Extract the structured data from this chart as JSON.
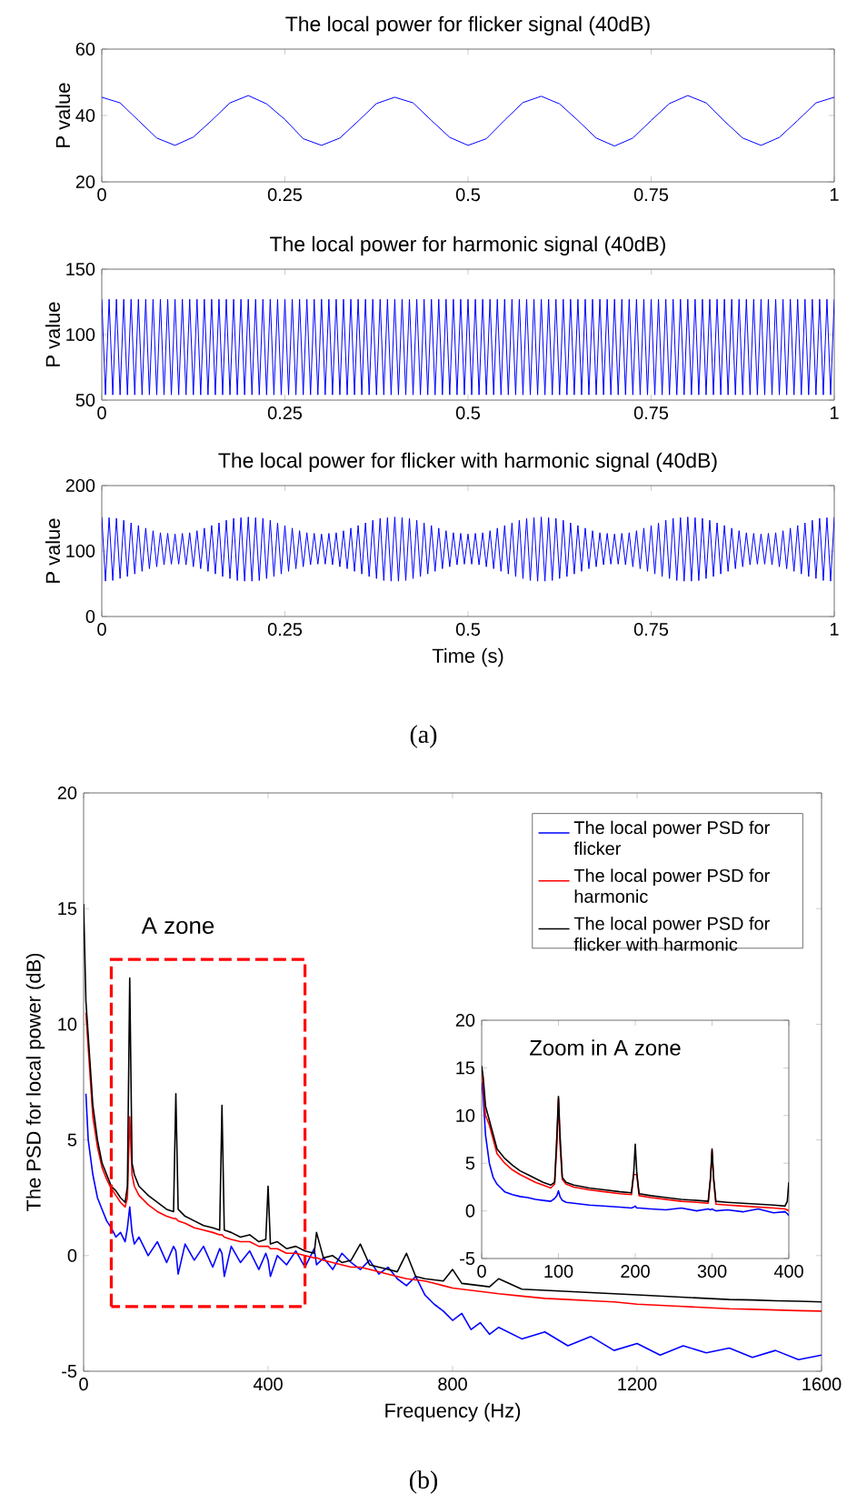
{
  "chart_data": [
    {
      "type": "line",
      "title": "The local power for flicker signal (40dB)",
      "ylabel": "P value",
      "xlim": [
        0,
        1
      ],
      "ylim": [
        20,
        60
      ],
      "xticks": [
        0,
        0.25,
        0.5,
        0.75,
        1
      ],
      "yticks": [
        20,
        40,
        60
      ],
      "x": [
        0,
        0.025,
        0.05,
        0.075,
        0.1,
        0.125,
        0.15,
        0.175,
        0.2,
        0.225,
        0.25,
        0.275,
        0.3,
        0.325,
        0.35,
        0.375,
        0.4,
        0.425,
        0.45,
        0.475,
        0.5,
        0.525,
        0.55,
        0.575,
        0.6,
        0.625,
        0.65,
        0.675,
        0.7,
        0.725,
        0.75,
        0.775,
        0.8,
        0.825,
        0.85,
        0.875,
        0.9,
        0.925,
        0.95,
        0.975,
        1
      ],
      "series": [
        {
          "color": "#0000ff",
          "values": [
            45.5,
            43.8,
            38.5,
            33.2,
            31,
            33.5,
            38.5,
            43.8,
            46,
            43.5,
            38.8,
            33,
            31,
            33.2,
            38.3,
            43.6,
            45.5,
            43.8,
            38.5,
            33.4,
            31,
            33,
            38.6,
            43.9,
            45.8,
            43.5,
            38.5,
            33.2,
            30.8,
            33.2,
            38.5,
            43.6,
            46,
            43.8,
            38.3,
            33.2,
            31,
            33.4,
            38.5,
            43.8,
            45.5
          ]
        }
      ]
    },
    {
      "type": "line",
      "title": "The local power for harmonic signal (40dB)",
      "ylabel": "P value",
      "xlim": [
        0,
        1
      ],
      "ylim": [
        50,
        150
      ],
      "xticks": [
        0,
        0.25,
        0.5,
        0.75,
        1
      ],
      "yticks": [
        50,
        100,
        150
      ],
      "x": [
        0,
        0.005,
        0.01,
        0.015,
        0.02,
        0.025,
        0.03,
        0.035,
        0.04,
        0.045,
        0.05,
        0.055,
        0.06,
        0.065,
        0.07,
        0.075,
        0.08,
        0.085,
        0.09,
        0.095,
        0.1,
        0.105,
        0.11,
        0.115,
        0.12,
        0.125,
        0.13,
        0.135,
        0.14,
        0.145,
        0.15,
        0.155,
        0.16,
        0.165,
        0.17,
        0.175,
        0.18,
        0.185,
        0.19,
        0.195,
        0.2,
        0.205,
        0.21,
        0.215,
        0.22,
        0.225,
        0.23,
        0.235,
        0.24,
        0.245,
        0.25,
        0.255,
        0.26,
        0.265,
        0.27,
        0.275,
        0.28,
        0.285,
        0.29,
        0.295,
        0.3,
        0.305,
        0.31,
        0.315,
        0.32,
        0.325,
        0.33,
        0.335,
        0.34,
        0.345,
        0.35,
        0.355,
        0.36,
        0.365,
        0.37,
        0.375,
        0.38,
        0.385,
        0.39,
        0.395,
        0.4,
        0.405,
        0.41,
        0.415,
        0.42,
        0.425,
        0.43,
        0.435,
        0.44,
        0.445,
        0.45,
        0.455,
        0.46,
        0.465,
        0.47,
        0.475,
        0.48,
        0.485,
        0.49,
        0.495,
        0.5,
        0.505,
        0.51,
        0.515,
        0.52,
        0.525,
        0.53,
        0.535,
        0.54,
        0.545,
        0.55,
        0.555,
        0.56,
        0.565,
        0.57,
        0.575,
        0.58,
        0.585,
        0.59,
        0.595,
        0.6,
        0.605,
        0.61,
        0.615,
        0.62,
        0.625,
        0.63,
        0.635,
        0.64,
        0.645,
        0.65,
        0.655,
        0.66,
        0.665,
        0.67,
        0.675,
        0.68,
        0.685,
        0.69,
        0.695,
        0.7,
        0.705,
        0.71,
        0.715,
        0.72,
        0.725,
        0.73,
        0.735,
        0.74,
        0.745,
        0.75,
        0.755,
        0.76,
        0.765,
        0.77,
        0.775,
        0.78,
        0.785,
        0.79,
        0.795,
        0.8,
        0.805,
        0.81,
        0.815,
        0.82,
        0.825,
        0.83,
        0.835,
        0.84,
        0.845,
        0.85,
        0.855,
        0.86,
        0.865,
        0.87,
        0.875,
        0.88,
        0.885,
        0.89,
        0.895,
        0.9,
        0.905,
        0.91,
        0.915,
        0.92,
        0.925,
        0.93,
        0.935,
        0.94,
        0.945,
        0.95,
        0.955,
        0.96,
        0.965,
        0.97,
        0.975,
        0.98,
        0.985,
        0.99,
        0.995,
        1
      ],
      "series": [
        {
          "color": "#0000ff",
          "values": [
            127,
            54,
            127,
            54,
            127,
            54,
            127,
            54,
            127,
            54,
            127,
            54,
            127,
            54,
            127,
            54,
            127,
            54,
            127,
            54,
            127,
            54,
            127,
            54,
            127,
            54,
            127,
            54,
            127,
            54,
            127,
            54,
            127,
            54,
            127,
            54,
            127,
            54,
            127,
            54,
            127,
            54,
            127,
            54,
            127,
            54,
            127,
            54,
            127,
            54,
            127,
            54,
            127,
            54,
            127,
            54,
            127,
            54,
            127,
            54,
            127,
            54,
            127,
            54,
            127,
            54,
            127,
            54,
            127,
            54,
            127,
            54,
            127,
            54,
            127,
            54,
            127,
            54,
            127,
            54,
            127,
            54,
            127,
            54,
            127,
            54,
            127,
            54,
            127,
            54,
            127,
            54,
            127,
            54,
            127,
            54,
            127,
            54,
            127,
            54,
            127,
            54,
            127,
            54,
            127,
            54,
            127,
            54,
            127,
            54,
            127,
            54,
            127,
            54,
            127,
            54,
            127,
            54,
            127,
            54,
            127,
            54,
            127,
            54,
            127,
            54,
            127,
            54,
            127,
            54,
            127,
            54,
            127,
            54,
            127,
            54,
            127,
            54,
            127,
            54,
            127,
            54,
            127,
            54,
            127,
            54,
            127,
            54,
            127,
            54,
            127,
            54,
            127,
            54,
            127,
            54,
            127,
            54,
            127,
            54,
            127,
            54,
            127,
            54,
            127,
            54,
            127,
            54,
            127,
            54,
            127,
            54,
            127,
            54,
            127,
            54,
            127,
            54,
            127,
            54,
            127,
            54,
            127,
            54,
            127,
            54,
            127,
            54,
            127,
            54,
            127,
            54,
            127,
            54,
            127,
            54,
            127,
            54,
            127,
            54,
            127
          ]
        }
      ]
    },
    {
      "type": "line",
      "title": "The local power for flicker with harmonic signal (40dB)",
      "xlabel": "Time (s)",
      "ylabel": "P value",
      "annotations": [
        "(a)"
      ],
      "xlim": [
        0,
        1
      ],
      "ylim": [
        0,
        200
      ],
      "xticks": [
        0,
        0.25,
        0.5,
        0.75,
        1
      ],
      "yticks": [
        0,
        100,
        200
      ],
      "x": [
        0,
        0.005,
        0.01,
        0.015,
        0.02,
        0.025,
        0.03,
        0.035,
        0.04,
        0.045,
        0.05,
        0.055,
        0.06,
        0.065,
        0.07,
        0.075,
        0.08,
        0.085,
        0.09,
        0.095,
        0.1,
        0.105,
        0.11,
        0.115,
        0.12,
        0.125,
        0.13,
        0.135,
        0.14,
        0.145,
        0.15,
        0.155,
        0.16,
        0.165,
        0.17,
        0.175,
        0.18,
        0.185,
        0.19,
        0.195,
        0.2,
        0.205,
        0.21,
        0.215,
        0.22,
        0.225,
        0.23,
        0.235,
        0.24,
        0.245,
        0.25,
        0.255,
        0.26,
        0.265,
        0.27,
        0.275,
        0.28,
        0.285,
        0.29,
        0.295,
        0.3,
        0.305,
        0.31,
        0.315,
        0.32,
        0.325,
        0.33,
        0.335,
        0.34,
        0.345,
        0.35,
        0.355,
        0.36,
        0.365,
        0.37,
        0.375,
        0.38,
        0.385,
        0.39,
        0.395,
        0.4,
        0.405,
        0.41,
        0.415,
        0.42,
        0.425,
        0.43,
        0.435,
        0.44,
        0.445,
        0.45,
        0.455,
        0.46,
        0.465,
        0.47,
        0.475,
        0.48,
        0.485,
        0.49,
        0.495,
        0.5,
        0.505,
        0.51,
        0.515,
        0.52,
        0.525,
        0.53,
        0.535,
        0.54,
        0.545,
        0.55,
        0.555,
        0.56,
        0.565,
        0.57,
        0.575,
        0.58,
        0.585,
        0.59,
        0.595,
        0.6,
        0.605,
        0.61,
        0.615,
        0.62,
        0.625,
        0.63,
        0.635,
        0.64,
        0.645,
        0.65,
        0.655,
        0.66,
        0.665,
        0.67,
        0.675,
        0.68,
        0.685,
        0.69,
        0.695,
        0.7,
        0.705,
        0.71,
        0.715,
        0.72,
        0.725,
        0.73,
        0.735,
        0.74,
        0.745,
        0.75,
        0.755,
        0.76,
        0.765,
        0.77,
        0.775,
        0.78,
        0.785,
        0.79,
        0.795,
        0.8,
        0.805,
        0.81,
        0.815,
        0.82,
        0.825,
        0.83,
        0.835,
        0.84,
        0.845,
        0.85,
        0.855,
        0.86,
        0.865,
        0.87,
        0.875,
        0.88,
        0.885,
        0.89,
        0.895,
        0.9,
        0.905,
        0.91,
        0.915,
        0.92,
        0.925,
        0.93,
        0.935,
        0.94,
        0.945,
        0.95,
        0.955,
        0.96,
        0.965,
        0.97,
        0.975,
        0.98,
        0.985,
        0.99,
        0.995,
        1
      ],
      "series": [
        {
          "color": "#0000ff",
          "values": [
            152,
            54,
            151,
            55,
            150,
            58,
            147,
            61,
            143,
            65,
            139,
            69,
            135,
            73,
            131,
            76,
            128,
            79,
            127,
            80,
            126,
            80,
            127,
            79,
            128,
            76,
            131,
            73,
            135,
            69,
            139,
            65,
            143,
            61,
            147,
            58,
            150,
            55,
            151,
            54,
            152,
            54,
            151,
            55,
            150,
            58,
            147,
            61,
            143,
            65,
            139,
            69,
            135,
            73,
            131,
            76,
            128,
            79,
            127,
            80,
            126,
            80,
            127,
            79,
            128,
            76,
            131,
            73,
            135,
            69,
            139,
            65,
            143,
            61,
            147,
            58,
            150,
            55,
            151,
            54,
            152,
            54,
            151,
            55,
            150,
            58,
            147,
            61,
            143,
            65,
            139,
            69,
            135,
            73,
            131,
            76,
            128,
            79,
            127,
            80,
            126,
            80,
            127,
            79,
            128,
            76,
            131,
            73,
            135,
            69,
            139,
            65,
            143,
            61,
            147,
            58,
            150,
            55,
            151,
            54,
            152,
            54,
            151,
            55,
            150,
            58,
            147,
            61,
            143,
            65,
            139,
            69,
            135,
            73,
            131,
            76,
            128,
            79,
            127,
            80,
            126,
            80,
            127,
            79,
            128,
            76,
            131,
            73,
            135,
            69,
            139,
            65,
            143,
            61,
            147,
            58,
            150,
            55,
            151,
            54,
            152,
            54,
            151,
            55,
            150,
            58,
            147,
            61,
            143,
            65,
            139,
            69,
            135,
            73,
            131,
            76,
            128,
            79,
            127,
            80,
            126,
            80,
            127,
            79,
            128,
            76,
            131,
            73,
            135,
            69,
            139,
            65,
            143,
            61,
            147,
            58,
            150,
            55,
            151,
            54,
            152
          ]
        }
      ]
    },
    {
      "type": "line",
      "xlabel": "Frequency (Hz)",
      "ylabel": "The PSD for local power (dB)",
      "annotations": [
        "A zone",
        "(b)"
      ],
      "legend": "top right",
      "xlim": [
        0,
        1600
      ],
      "ylim": [
        -5,
        20
      ],
      "xticks": [
        0,
        400,
        800,
        1200,
        1600
      ],
      "yticks": [
        -5,
        0,
        5,
        10,
        15,
        20
      ],
      "x": [
        0,
        5,
        10,
        20,
        30,
        40,
        50,
        60,
        70,
        80,
        90,
        95,
        100,
        105,
        110,
        120,
        140,
        160,
        180,
        195,
        200,
        205,
        220,
        240,
        260,
        280,
        295,
        300,
        305,
        320,
        340,
        360,
        380,
        395,
        400,
        405,
        420,
        440,
        460,
        480,
        500,
        505,
        520,
        540,
        560,
        580,
        600,
        620,
        640,
        660,
        680,
        700,
        720,
        740,
        760,
        780,
        800,
        820,
        840,
        860,
        880,
        900,
        950,
        1000,
        1050,
        1100,
        1150,
        1200,
        1250,
        1300,
        1350,
        1400,
        1450,
        1500,
        1550,
        1600
      ],
      "series": [
        {
          "name": "The local power PSD for flicker",
          "color": "#0000ff",
          "values": [
            null,
            7,
            5,
            3.5,
            2.5,
            2,
            1.5,
            1.2,
            0.8,
            1,
            0.6,
            1.2,
            2.1,
            1,
            0.5,
            0.8,
            0,
            0.6,
            -0.3,
            0.4,
            0.2,
            -0.8,
            0.5,
            -0.2,
            0.4,
            -0.5,
            0.3,
            0.1,
            -0.9,
            0.4,
            -0.3,
            0.2,
            -0.6,
            0.1,
            -0.2,
            -0.9,
            0,
            -0.4,
            0.2,
            -0.5,
            0.3,
            -0.4,
            -0.1,
            -0.6,
            0.1,
            -0.3,
            -0.6,
            -0.2,
            -0.8,
            -0.5,
            -1,
            -1.3,
            -0.9,
            -1.7,
            -2.1,
            -2.4,
            -2.8,
            -2.5,
            -3.2,
            -2.9,
            -3.4,
            -3.1,
            -3.6,
            -3.3,
            -3.9,
            -3.5,
            -4.1,
            -3.8,
            -4.3,
            -3.9,
            -4.2,
            -4,
            -4.4,
            -4.1,
            -4.5,
            -4.3
          ]
        },
        {
          "name": "The local power PSD for harmonic",
          "color": "#ff0000",
          "values": [
            null,
            10.5,
            9,
            6,
            4.7,
            3.8,
            3.3,
            2.9,
            2.6,
            2.3,
            2.1,
            2.5,
            6,
            3.5,
            3,
            2.6,
            2.2,
            1.9,
            1.7,
            1.6,
            1.6,
            1.5,
            1.4,
            1.2,
            1.1,
            1,
            0.9,
            0.9,
            0.8,
            0.7,
            0.6,
            0.6,
            0.4,
            0.4,
            0.4,
            0.3,
            0.3,
            0.1,
            0.1,
            0,
            -0.1,
            -0.1,
            -0.2,
            -0.3,
            -0.4,
            -0.5,
            -0.5,
            -0.6,
            -0.7,
            -0.8,
            -0.9,
            -1,
            -1.05,
            -1.1,
            -1.2,
            -1.3,
            -1.4,
            -1.45,
            -1.5,
            -1.55,
            -1.6,
            -1.65,
            -1.75,
            -1.85,
            -1.9,
            -1.95,
            -2,
            -2.1,
            -2.15,
            -2.2,
            -2.25,
            -2.3,
            -2.32,
            -2.35,
            -2.38,
            -2.4
          ]
        },
        {
          "name": "The local power PSD for flicker with harmonic",
          "color": "#000000",
          "values": [
            15.2,
            11,
            9.5,
            6.5,
            5,
            4,
            3.5,
            3,
            2.8,
            2.5,
            2.3,
            3,
            12,
            4,
            3.5,
            3,
            2.6,
            2.3,
            2,
            1.9,
            7,
            2,
            1.7,
            1.5,
            1.3,
            1.2,
            1.1,
            6.5,
            1.1,
            1,
            0.8,
            0.9,
            0.6,
            0.7,
            3,
            0.5,
            0.6,
            0.3,
            0.4,
            0.2,
            0.1,
            1,
            -0.1,
            0,
            -0.3,
            -0.2,
            0.5,
            -0.4,
            -0.5,
            -0.6,
            -0.7,
            0.1,
            -0.9,
            -1,
            -1.05,
            -1.1,
            -0.6,
            -1.2,
            -1.25,
            -1.3,
            -1.35,
            -1,
            -1.45,
            -1.5,
            -1.55,
            -1.6,
            -1.65,
            -1.7,
            -1.75,
            -1.8,
            -1.85,
            -1.9,
            -1.92,
            -1.95,
            -1.97,
            -2
          ]
        }
      ]
    },
    {
      "type": "line",
      "annotations": [
        "Zoom in A zone"
      ],
      "xlim": [
        0,
        400
      ],
      "ylim": [
        -5,
        20
      ],
      "xticks": [
        0,
        100,
        200,
        300,
        400
      ],
      "yticks": [
        -5,
        0,
        5,
        10,
        15,
        20
      ],
      "x": [
        0,
        2,
        5,
        10,
        15,
        20,
        30,
        40,
        50,
        60,
        70,
        80,
        90,
        95,
        98,
        100,
        102,
        105,
        110,
        120,
        140,
        160,
        180,
        195,
        198,
        200,
        202,
        205,
        220,
        240,
        260,
        280,
        295,
        298,
        300,
        302,
        305,
        320,
        340,
        360,
        380,
        395,
        398,
        400
      ],
      "series": [
        {
          "color": "#0000ff",
          "values": [
            13.5,
            12,
            8,
            5,
            3.5,
            2.8,
            2,
            1.7,
            1.5,
            1.4,
            1.2,
            1.1,
            1,
            1.3,
            1.6,
            2.1,
            1.5,
            1.1,
            0.9,
            0.8,
            0.6,
            0.5,
            0.4,
            0.3,
            0.4,
            0.5,
            0.3,
            0.3,
            0.2,
            0.1,
            0.3,
            0,
            0.2,
            0.1,
            0.2,
            0.1,
            0,
            0.1,
            -0.1,
            0.2,
            -0.2,
            -0.1,
            -0.3,
            -0.5
          ]
        },
        {
          "color": "#ff0000",
          "values": [
            15,
            13,
            10,
            9,
            7.5,
            6,
            5,
            4.3,
            3.8,
            3.4,
            3,
            2.7,
            2.4,
            2.8,
            7,
            11.8,
            7,
            3.3,
            2.8,
            2.5,
            2.2,
            2,
            1.8,
            1.7,
            3.8,
            null,
            3.8,
            1.6,
            1.4,
            1.2,
            1,
            0.9,
            0.8,
            3.3,
            6.3,
            3.3,
            0.7,
            0.6,
            0.5,
            0.4,
            0.3,
            0.2,
            0.1,
            0
          ]
        },
        {
          "color": "#000000",
          "values": [
            15.2,
            14,
            11,
            9.5,
            8,
            6.5,
            5.5,
            4.8,
            4.2,
            3.8,
            3.4,
            3,
            2.7,
            3,
            8,
            12,
            8,
            3.5,
            3,
            2.7,
            2.4,
            2.2,
            2,
            1.9,
            4,
            7,
            4,
            1.8,
            1.6,
            1.4,
            1.2,
            1.1,
            1,
            3.5,
            6.5,
            3.5,
            1,
            0.9,
            0.8,
            0.7,
            0.6,
            0.5,
            1,
            3
          ]
        }
      ]
    }
  ]
}
